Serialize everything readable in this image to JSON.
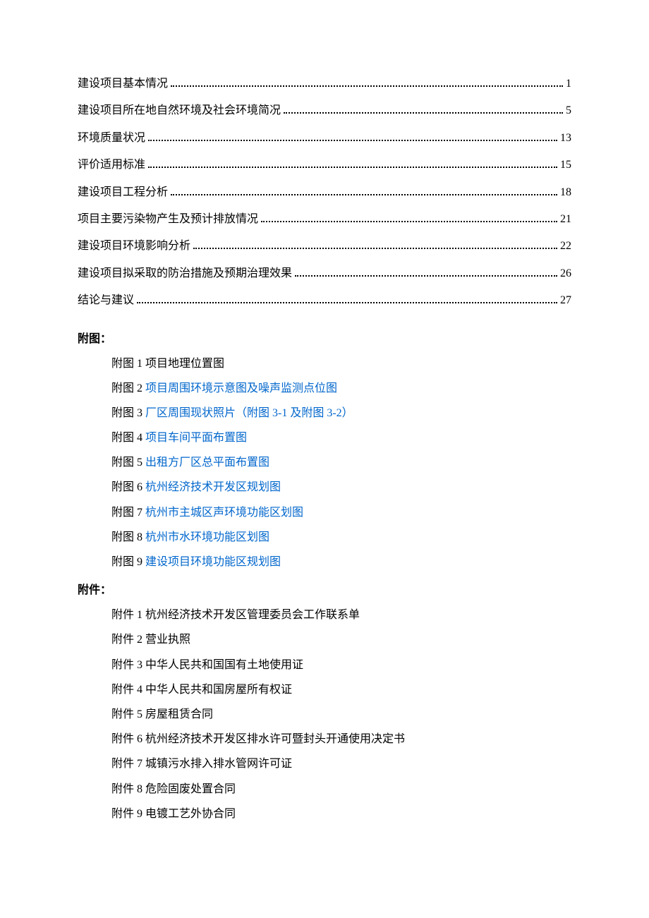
{
  "colors": {
    "text_black": "#000000",
    "link_blue": "#0066cc",
    "background": "#ffffff"
  },
  "typography": {
    "font_family": "SimSun",
    "font_size_pt": 12,
    "line_height": 2.3
  },
  "toc": {
    "entries": [
      {
        "label": "建设项目基本情况",
        "page": "1"
      },
      {
        "label": "建设项目所在地自然环境及社会环境简况",
        "page": "5"
      },
      {
        "label": "环境质量状况",
        "page": "13"
      },
      {
        "label": "评价适用标准",
        "page": "15"
      },
      {
        "label": "建设项目工程分析",
        "page": "18"
      },
      {
        "label": "项目主要污染物产生及预计排放情况",
        "page": "21"
      },
      {
        "label": "建设项目环境影响分析",
        "page": "22"
      },
      {
        "label": "建设项目拟采取的防治措施及预期治理效果",
        "page": "26"
      },
      {
        "label": "结论与建议",
        "page": "27"
      }
    ]
  },
  "figures": {
    "heading": "附图：",
    "items": [
      {
        "prefix": "附图 1 ",
        "text": "项目地理位置图",
        "is_link": false
      },
      {
        "prefix": "附图 2 ",
        "text": "项目周围环境示意图及噪声监测点位图",
        "is_link": true
      },
      {
        "prefix": "附图 3 ",
        "text": "厂区周围现状照片（附图 3-1 及附图 3-2）",
        "is_link": true
      },
      {
        "prefix": "附图 4 ",
        "text": "项目车间平面布置图",
        "is_link": true
      },
      {
        "prefix": "附图 5 ",
        "text": "出租方厂区总平面布置图",
        "is_link": true
      },
      {
        "prefix": "附图 6 ",
        "text": "杭州经济技术开发区规划图",
        "is_link": true
      },
      {
        "prefix": "附图 7 ",
        "text": "杭州市主城区声环境功能区划图",
        "is_link": true
      },
      {
        "prefix": "附图 8 ",
        "text": "杭州市水环境功能区划图",
        "is_link": true
      },
      {
        "prefix": "附图 9 ",
        "text": "建设项目环境功能区规划图",
        "is_link": true
      }
    ]
  },
  "attachments": {
    "heading": "附件：",
    "items": [
      {
        "prefix": "附件 1 ",
        "text": "杭州经济技术开发区管理委员会工作联系单",
        "is_link": false
      },
      {
        "prefix": "附件 2 ",
        "text": "营业执照",
        "is_link": false
      },
      {
        "prefix": "附件 3 ",
        "text": "中华人民共和国国有土地使用证",
        "is_link": false
      },
      {
        "prefix": "附件 4 ",
        "text": "中华人民共和国房屋所有权证",
        "is_link": false
      },
      {
        "prefix": "附件 5 ",
        "text": "房屋租赁合同",
        "is_link": false
      },
      {
        "prefix": "附件 6 ",
        "text": "杭州经济技术开发区排水许可暨封头开通使用决定书",
        "is_link": false
      },
      {
        "prefix": "附件 7 ",
        "text": "城镇污水排入排水管网许可证",
        "is_link": false
      },
      {
        "prefix": "附件 8 ",
        "text": "危险固废处置合同",
        "is_link": false
      },
      {
        "prefix": "附件 9 ",
        "text": "电镀工艺外协合同",
        "is_link": false
      }
    ]
  }
}
